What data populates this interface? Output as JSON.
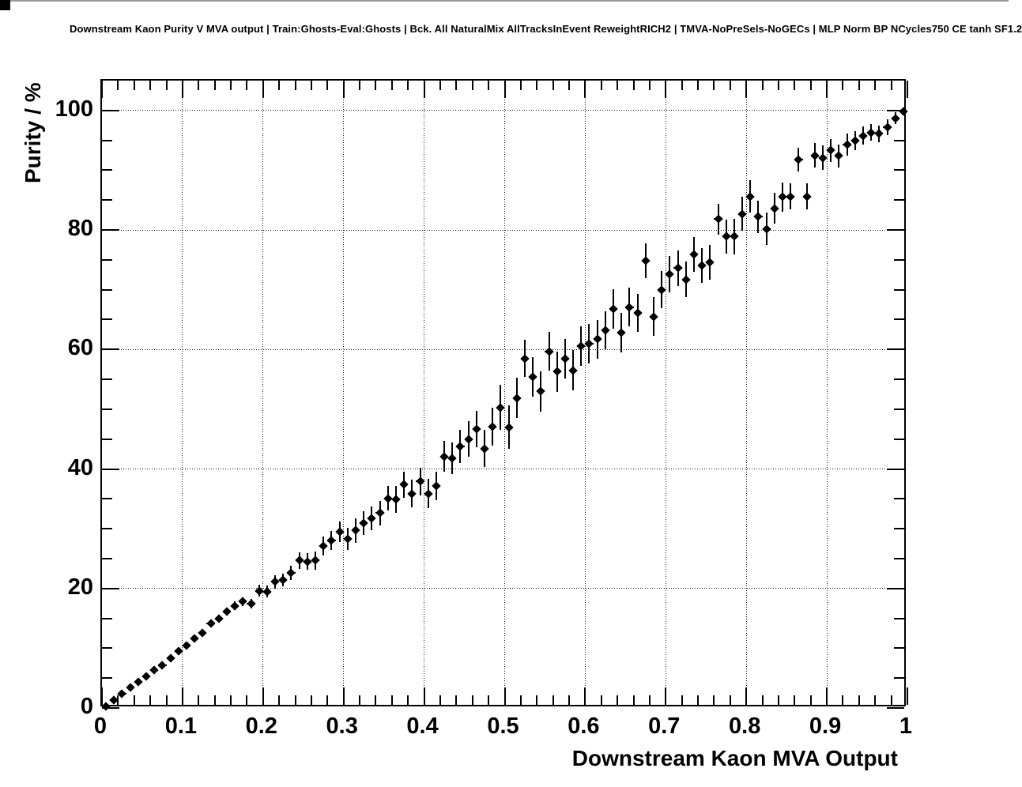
{
  "title": "Downstream Kaon Purity V MVA output | Train:Ghosts-Eval:Ghosts | Bck. All NaturalMix AllTracksInEvent ReweightRICH2 | TMVA-NoPreSels-NoGECs | MLP Norm BP NCycles750 CE tanh SF1.2",
  "colors": {
    "marker": "#000000",
    "background": "#ffffff",
    "grid": "#000000",
    "frame": "#000000"
  },
  "chart_data": {
    "type": "scatter",
    "title": "Downstream Kaon Purity V MVA output | Train:Ghosts-Eval:Ghosts | Bck. All NaturalMix AllTracksInEvent ReweightRICH2 | TMVA-NoPreSels-NoGECs | MLP Norm BP NCycles750 CE tanh SF1.2",
    "xlabel": "Downstream Kaon MVA Output",
    "ylabel": "Purity / %",
    "xlim": [
      0,
      1
    ],
    "ylim": [
      0,
      105
    ],
    "grid": true,
    "grid_style": "dotted",
    "legend": "none",
    "marker": "filled-diamond",
    "x_ticks": [
      0,
      0.1,
      0.2,
      0.3,
      0.4,
      0.5,
      0.6,
      0.7,
      0.8,
      0.9,
      1
    ],
    "x_tick_labels": [
      "0",
      "0.1",
      "0.2",
      "0.3",
      "0.4",
      "0.5",
      "0.6",
      "0.7",
      "0.8",
      "0.9",
      "1"
    ],
    "y_ticks": [
      0,
      20,
      40,
      60,
      80,
      100
    ],
    "y_tick_labels": [
      "0",
      "20",
      "40",
      "60",
      "80",
      "100"
    ],
    "x_minor_step": 0.02,
    "y_minor_step": 5,
    "x_error_half": 0.005,
    "points_format": [
      "x",
      "y",
      "y_error_half"
    ],
    "points": [
      [
        0.005,
        0.3,
        0.1
      ],
      [
        0.015,
        1.3,
        0.15
      ],
      [
        0.025,
        2.4,
        0.2
      ],
      [
        0.035,
        3.5,
        0.25
      ],
      [
        0.045,
        4.3,
        0.3
      ],
      [
        0.055,
        5.3,
        0.3
      ],
      [
        0.065,
        6.4,
        0.35
      ],
      [
        0.075,
        7.2,
        0.4
      ],
      [
        0.085,
        8.3,
        0.4
      ],
      [
        0.095,
        9.5,
        0.45
      ],
      [
        0.105,
        10.4,
        0.5
      ],
      [
        0.115,
        11.7,
        0.5
      ],
      [
        0.125,
        12.6,
        0.55
      ],
      [
        0.135,
        14.2,
        0.6
      ],
      [
        0.145,
        15.0,
        0.6
      ],
      [
        0.155,
        16.1,
        0.65
      ],
      [
        0.165,
        17.1,
        0.7
      ],
      [
        0.175,
        17.8,
        0.75
      ],
      [
        0.185,
        17.5,
        0.8
      ],
      [
        0.195,
        19.6,
        1.0
      ],
      [
        0.205,
        19.5,
        1.0
      ],
      [
        0.215,
        21.1,
        1.1
      ],
      [
        0.225,
        21.4,
        1.1
      ],
      [
        0.235,
        22.6,
        1.2
      ],
      [
        0.245,
        24.7,
        1.4
      ],
      [
        0.255,
        24.5,
        1.4
      ],
      [
        0.265,
        24.7,
        1.5
      ],
      [
        0.275,
        27.1,
        1.6
      ],
      [
        0.285,
        28.0,
        1.6
      ],
      [
        0.295,
        29.5,
        1.7
      ],
      [
        0.305,
        28.3,
        1.8
      ],
      [
        0.315,
        29.7,
        2.0
      ],
      [
        0.325,
        30.9,
        2.0
      ],
      [
        0.335,
        31.7,
        2.0
      ],
      [
        0.345,
        32.6,
        2.1
      ],
      [
        0.355,
        35.1,
        2.1
      ],
      [
        0.365,
        34.9,
        2.2
      ],
      [
        0.375,
        37.4,
        2.2
      ],
      [
        0.385,
        35.9,
        2.3
      ],
      [
        0.395,
        37.9,
        2.3
      ],
      [
        0.405,
        35.9,
        2.4
      ],
      [
        0.415,
        37.2,
        2.4
      ],
      [
        0.425,
        42.1,
        2.6
      ],
      [
        0.435,
        41.8,
        2.6
      ],
      [
        0.445,
        43.8,
        2.8
      ],
      [
        0.455,
        45.0,
        3.0
      ],
      [
        0.465,
        46.7,
        3.0
      ],
      [
        0.475,
        43.4,
        3.1
      ],
      [
        0.485,
        47.1,
        3.2
      ],
      [
        0.495,
        50.3,
        3.8
      ],
      [
        0.505,
        47.0,
        3.6
      ],
      [
        0.515,
        51.9,
        3.4
      ],
      [
        0.525,
        58.5,
        3.1
      ],
      [
        0.535,
        55.4,
        3.3
      ],
      [
        0.545,
        53.0,
        3.4
      ],
      [
        0.555,
        59.7,
        3.2
      ],
      [
        0.565,
        56.3,
        3.4
      ],
      [
        0.575,
        58.4,
        3.3
      ],
      [
        0.585,
        56.5,
        3.4
      ],
      [
        0.595,
        60.6,
        3.3
      ],
      [
        0.605,
        61.0,
        3.3
      ],
      [
        0.615,
        61.7,
        3.2
      ],
      [
        0.625,
        63.2,
        3.2
      ],
      [
        0.635,
        66.8,
        3.3
      ],
      [
        0.645,
        62.8,
        3.3
      ],
      [
        0.655,
        67.1,
        3.2
      ],
      [
        0.665,
        66.1,
        3.2
      ],
      [
        0.675,
        74.9,
        2.9
      ],
      [
        0.685,
        65.5,
        3.2
      ],
      [
        0.695,
        70.0,
        3.1
      ],
      [
        0.705,
        72.6,
        3.0
      ],
      [
        0.715,
        73.6,
        3.0
      ],
      [
        0.725,
        71.7,
        3.0
      ],
      [
        0.735,
        75.9,
        2.9
      ],
      [
        0.745,
        74.1,
        2.9
      ],
      [
        0.755,
        74.6,
        2.9
      ],
      [
        0.765,
        81.8,
        2.6
      ],
      [
        0.775,
        78.9,
        2.8
      ],
      [
        0.785,
        78.9,
        3.0
      ],
      [
        0.795,
        82.7,
        2.8
      ],
      [
        0.805,
        85.6,
        2.7
      ],
      [
        0.815,
        82.2,
        2.7
      ],
      [
        0.825,
        80.2,
        2.7
      ],
      [
        0.835,
        83.6,
        2.6
      ],
      [
        0.845,
        85.5,
        2.5
      ],
      [
        0.855,
        85.6,
        2.2
      ],
      [
        0.865,
        91.8,
        2.0
      ],
      [
        0.875,
        85.6,
        2.2
      ],
      [
        0.885,
        92.5,
        2.1
      ],
      [
        0.895,
        92.1,
        2.1
      ],
      [
        0.905,
        93.3,
        1.9
      ],
      [
        0.915,
        92.4,
        1.9
      ],
      [
        0.925,
        94.3,
        1.8
      ],
      [
        0.935,
        95.0,
        1.6
      ],
      [
        0.945,
        95.8,
        1.5
      ],
      [
        0.955,
        96.3,
        1.4
      ],
      [
        0.965,
        96.1,
        1.4
      ],
      [
        0.975,
        97.2,
        1.3
      ],
      [
        0.985,
        98.7,
        1.0
      ],
      [
        0.995,
        99.9,
        0.4
      ]
    ]
  }
}
